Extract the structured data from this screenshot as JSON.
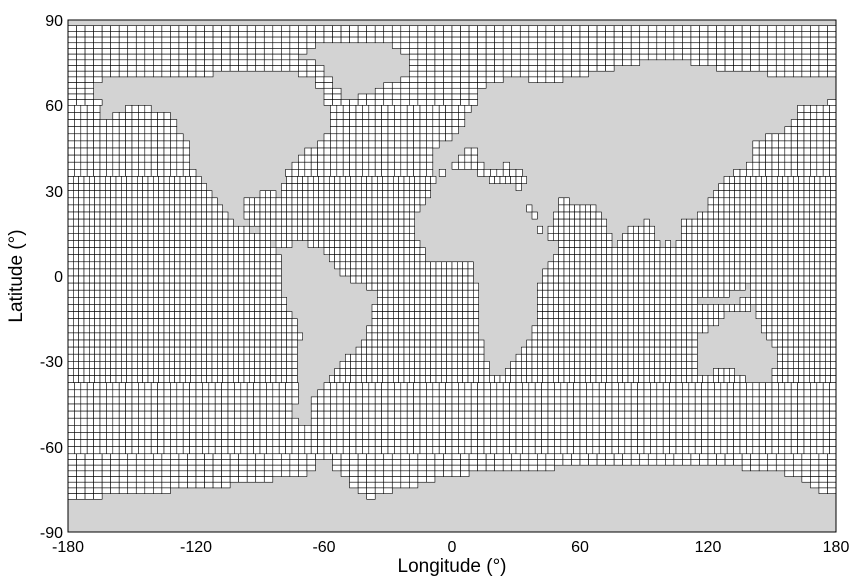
{
  "figure": {
    "xlabel": "Longitude (°)",
    "ylabel": "Latitude (°)",
    "xlim": [
      -180,
      180
    ],
    "ylim": [
      -90,
      90
    ],
    "x_ticks": [
      "-180",
      "-120",
      "-60",
      "0",
      "60",
      "120",
      "180"
    ],
    "y_ticks": [
      "90",
      "60",
      "30",
      "0",
      "-30",
      "-60",
      "-90"
    ]
  },
  "colors": {
    "land": "#d3d3d3",
    "ocean_grid_line": "#000000",
    "ocean_cell_fill": "#ffffff",
    "frame": "#000000"
  }
}
